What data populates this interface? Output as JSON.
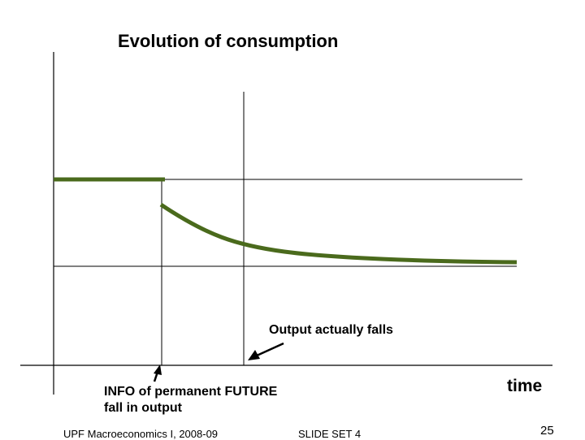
{
  "title": "Evolution of consumption",
  "annotations": {
    "output_falls": "Output actually falls",
    "info_line1": "INFO of permanent FUTURE",
    "info_line2": "fall in output"
  },
  "axis": {
    "x_label": "time"
  },
  "footer": {
    "course": "UPF Macroeconomics I, 2008-09",
    "slide_set": "SLIDE SET 4",
    "page_number": "25"
  },
  "colors": {
    "consumption_line": "#4a6a1c",
    "axis": "#000000",
    "reference_lines": "#000000"
  }
}
